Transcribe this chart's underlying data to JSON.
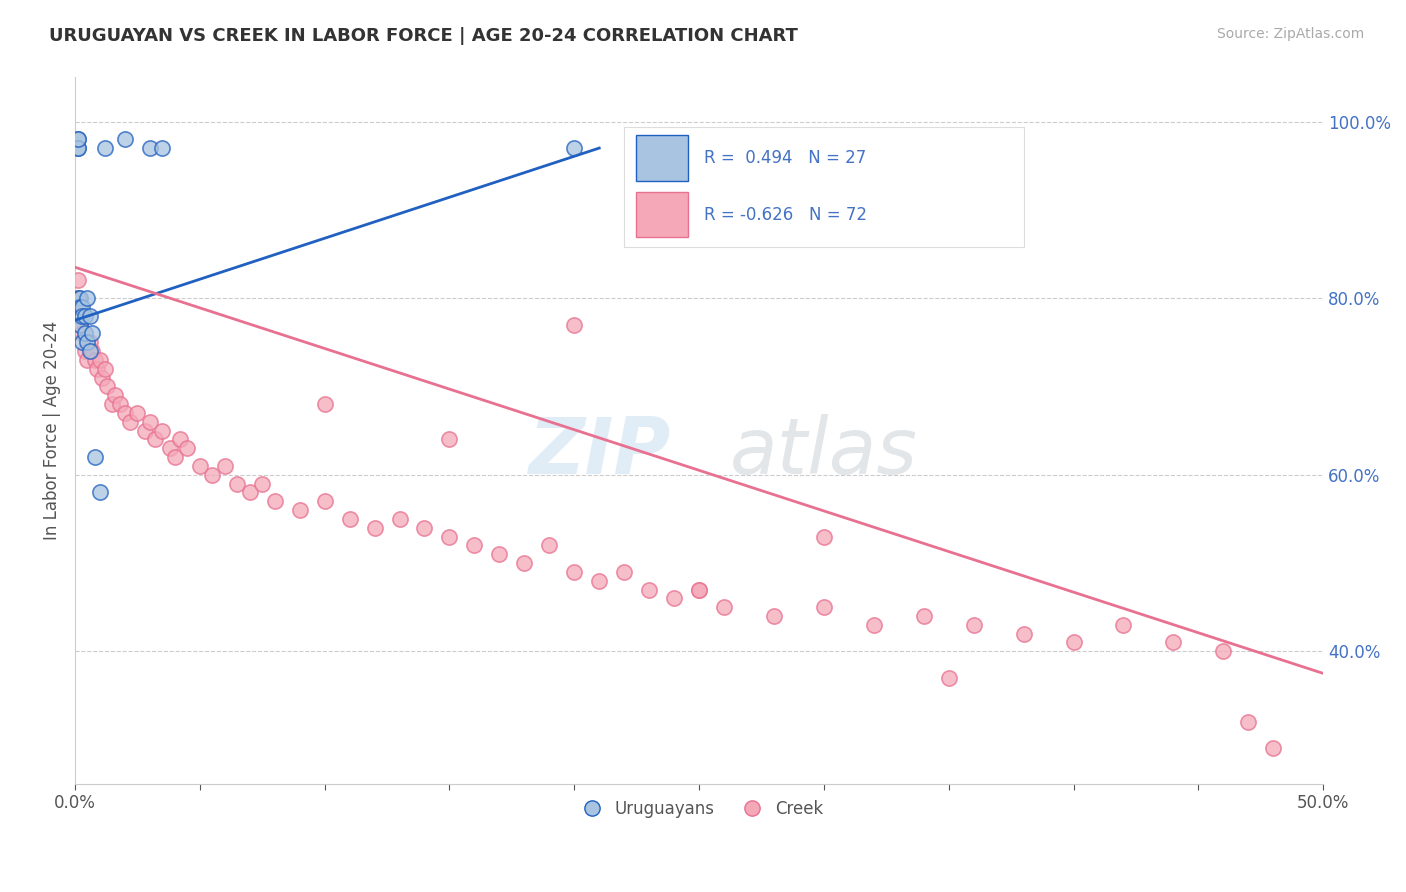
{
  "title": "URUGUAYAN VS CREEK IN LABOR FORCE | AGE 20-24 CORRELATION CHART",
  "source_text": "Source: ZipAtlas.com",
  "ylabel": "In Labor Force | Age 20-24",
  "xlim": [
    0.0,
    0.5
  ],
  "ylim": [
    0.25,
    1.05
  ],
  "blue_color": "#a8c4e0",
  "pink_color": "#f4a8b8",
  "blue_line_color": "#2060c0",
  "pink_line_color": "#e87090",
  "legend_blue_label": "R =  0.494   N = 27",
  "legend_pink_label": "R = -0.626   N = 72",
  "uruguayan_label": "Uruguayans",
  "creek_label": "Creek",
  "uruguayan_x": [
    0.001,
    0.001,
    0.001,
    0.001,
    0.001,
    0.001,
    0.002,
    0.002,
    0.002,
    0.002,
    0.003,
    0.003,
    0.003,
    0.004,
    0.004,
    0.005,
    0.005,
    0.006,
    0.006,
    0.007,
    0.008,
    0.01,
    0.012,
    0.02,
    0.03,
    0.035,
    0.2
  ],
  "uruguayan_y": [
    0.97,
    0.98,
    0.97,
    0.98,
    0.8,
    0.79,
    0.78,
    0.8,
    0.79,
    0.77,
    0.79,
    0.78,
    0.75,
    0.76,
    0.78,
    0.75,
    0.8,
    0.74,
    0.78,
    0.76,
    0.62,
    0.58,
    0.97,
    0.98,
    0.97,
    0.97,
    0.97
  ],
  "creek_x": [
    0.001,
    0.001,
    0.002,
    0.002,
    0.003,
    0.004,
    0.005,
    0.006,
    0.007,
    0.008,
    0.009,
    0.01,
    0.011,
    0.012,
    0.013,
    0.015,
    0.016,
    0.018,
    0.02,
    0.022,
    0.025,
    0.028,
    0.03,
    0.032,
    0.035,
    0.038,
    0.04,
    0.042,
    0.045,
    0.05,
    0.055,
    0.06,
    0.065,
    0.07,
    0.075,
    0.08,
    0.09,
    0.1,
    0.11,
    0.12,
    0.13,
    0.14,
    0.15,
    0.16,
    0.17,
    0.18,
    0.19,
    0.2,
    0.21,
    0.22,
    0.23,
    0.24,
    0.25,
    0.26,
    0.28,
    0.3,
    0.32,
    0.34,
    0.36,
    0.38,
    0.4,
    0.42,
    0.44,
    0.46,
    0.47,
    0.48,
    0.25,
    0.3,
    0.35,
    0.15,
    0.2,
    0.1
  ],
  "creek_y": [
    0.82,
    0.8,
    0.79,
    0.77,
    0.76,
    0.74,
    0.73,
    0.75,
    0.74,
    0.73,
    0.72,
    0.73,
    0.71,
    0.72,
    0.7,
    0.68,
    0.69,
    0.68,
    0.67,
    0.66,
    0.67,
    0.65,
    0.66,
    0.64,
    0.65,
    0.63,
    0.62,
    0.64,
    0.63,
    0.61,
    0.6,
    0.61,
    0.59,
    0.58,
    0.59,
    0.57,
    0.56,
    0.57,
    0.55,
    0.54,
    0.55,
    0.54,
    0.53,
    0.52,
    0.51,
    0.5,
    0.52,
    0.49,
    0.48,
    0.49,
    0.47,
    0.46,
    0.47,
    0.45,
    0.44,
    0.45,
    0.43,
    0.44,
    0.43,
    0.42,
    0.41,
    0.43,
    0.41,
    0.4,
    0.32,
    0.29,
    0.47,
    0.53,
    0.37,
    0.64,
    0.77,
    0.68
  ],
  "blue_trend_x": [
    0.0,
    0.21
  ],
  "blue_trend_y": [
    0.775,
    0.97
  ],
  "pink_trend_x": [
    0.0,
    0.5
  ],
  "pink_trend_y": [
    0.835,
    0.375
  ],
  "ytick_vals": [
    0.4,
    0.6,
    0.8,
    1.0
  ],
  "ytick_labels": [
    "40.0%",
    "60.0%",
    "80.0%",
    "100.0%"
  ],
  "xtick_vals": [
    0.0,
    0.05,
    0.1,
    0.15,
    0.2,
    0.25,
    0.3,
    0.35,
    0.4,
    0.45,
    0.5
  ],
  "xtick_labels": [
    "0.0%",
    "",
    "",
    "",
    "",
    "",
    "",
    "",
    "",
    "",
    "50.0%"
  ]
}
